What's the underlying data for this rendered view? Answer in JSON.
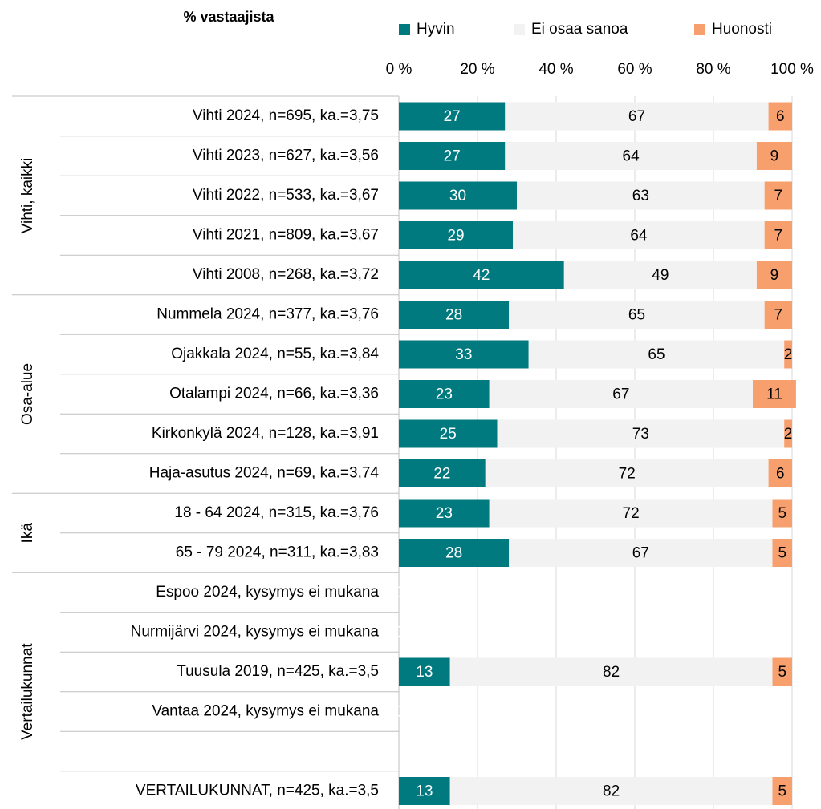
{
  "chart_data": {
    "type": "stacked-bar-horizontal",
    "title": "% vastaajista",
    "categories": [
      "Vihti 2024, n=695, ka.=3,75",
      "Vihti 2023, n=627, ka.=3,56",
      "Vihti 2022, n=533, ka.=3,67",
      "Vihti 2021, n=809, ka.=3,67",
      "Vihti 2008, n=268, ka.=3,72",
      "Nummela 2024, n=377, ka.=3,76",
      "Ojakkala 2024, n=55, ka.=3,84",
      "Otalampi 2024, n=66, ka.=3,36",
      "Kirkonkylä 2024, n=128, ka.=3,91",
      "Haja-asutus 2024, n=69, ka.=3,74",
      "18 - 64 2024, n=315, ka.=3,76",
      "65 - 79 2024, n=311, ka.=3,83",
      "Espoo 2024, kysymys ei mukana",
      "Nurmijärvi 2024, kysymys ei mukana",
      "Tuusula 2019, n=425, ka.=3,5",
      "Vantaa 2024, kysymys ei mukana",
      null,
      "VERTAILUKUNNAT, n=425, ka.=3,5"
    ],
    "groups": [
      "Vihti, kaikki",
      "Osa-alue",
      "Ikä",
      "Vertailukunnat"
    ],
    "series": [
      {
        "name": "Hyvin",
        "color": "#00797f",
        "label_color": "#ffffff",
        "values": [
          27,
          27,
          30,
          29,
          42,
          28,
          33,
          23,
          25,
          22,
          23,
          28,
          0,
          0,
          13,
          0,
          null,
          13
        ]
      },
      {
        "name": "Ei osaa sanoa",
        "color": "#f2f2f2",
        "label_color": "#000000",
        "values": [
          67,
          64,
          63,
          64,
          49,
          65,
          65,
          67,
          73,
          72,
          72,
          67,
          null,
          null,
          82,
          null,
          null,
          82
        ]
      },
      {
        "name": "Huonosti",
        "color": "#f7a06e",
        "label_color": "#000000",
        "values": [
          6,
          9,
          7,
          7,
          9,
          7,
          2,
          11,
          2,
          6,
          5,
          5,
          null,
          null,
          5,
          null,
          null,
          5
        ]
      }
    ],
    "xlim": [
      0,
      100
    ],
    "xticks": [
      {
        "value": 0,
        "label": "0 %"
      },
      {
        "value": 20,
        "label": "20 %"
      },
      {
        "value": 40,
        "label": "40 %"
      },
      {
        "value": 60,
        "label": "60 %"
      },
      {
        "value": 80,
        "label": "80 %"
      },
      {
        "value": 100,
        "label": "100 %"
      }
    ],
    "grid": true
  }
}
